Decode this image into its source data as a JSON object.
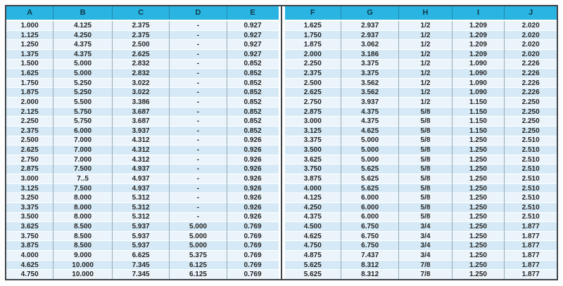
{
  "table": {
    "headers_left": [
      "A",
      "B",
      "C",
      "D",
      "E"
    ],
    "headers_right": [
      "F",
      "G",
      "H",
      "I",
      "J"
    ],
    "rows": [
      [
        "1.000",
        "4.125",
        "2.375",
        "-",
        "0.927",
        "1.625",
        "2.937",
        "1/2",
        "1.209",
        "2.020"
      ],
      [
        "1.125",
        "4.250",
        "2.375",
        "-",
        "0.927",
        "1.750",
        "2.937",
        "1/2",
        "1.209",
        "2.020"
      ],
      [
        "1.250",
        "4.375",
        "2.500",
        "-",
        "0.927",
        "1.875",
        "3.062",
        "1/2",
        "1.209",
        "2.020"
      ],
      [
        "1.375",
        "4.375",
        "2.625",
        "-",
        "0.927",
        "2.000",
        "3.186",
        "1/2",
        "1.209",
        "2.020"
      ],
      [
        "1.500",
        "5.000",
        "2.832",
        "-",
        "0.852",
        "2.250",
        "3.375",
        "1/2",
        "1.090",
        "2.226"
      ],
      [
        "1.625",
        "5.000",
        "2.832",
        "-",
        "0.852",
        "2.375",
        "3.375",
        "1/2",
        "1.090",
        "2.226"
      ],
      [
        "1.750",
        "5.250",
        "3.022",
        "-",
        "0.852",
        "2.500",
        "3.562",
        "1/2",
        "1.090",
        "2.226"
      ],
      [
        "1.875",
        "5.250",
        "3.022",
        "-",
        "0.852",
        "2.625",
        "3.562",
        "1/2",
        "1.090",
        "2.226"
      ],
      [
        "2.000",
        "5.500",
        "3.386",
        "-",
        "0.852",
        "2.750",
        "3.937",
        "1/2",
        "1.150",
        "2.250"
      ],
      [
        "2.125",
        "5.750",
        "3.687",
        "-",
        "0.852",
        "2.875",
        "4.375",
        "5/8",
        "1.150",
        "2.250"
      ],
      [
        "2.250",
        "5.750",
        "3.687",
        "-",
        "0.852",
        "3.000",
        "4.375",
        "5/8",
        "1.150",
        "2.250"
      ],
      [
        "2.375",
        "6.000",
        "3.937",
        "-",
        "0.852",
        "3.125",
        "4.625",
        "5/8",
        "1.150",
        "2.250"
      ],
      [
        "2.500",
        "7.000",
        "4.312",
        "-",
        "0.926",
        "3.375",
        "5.000",
        "5/8",
        "1.250",
        "2.510"
      ],
      [
        "2.625",
        "7.000",
        "4.312",
        "-",
        "0.926",
        "3.500",
        "5.000",
        "5/8",
        "1.250",
        "2.510"
      ],
      [
        "2.750",
        "7.000",
        "4.312",
        "-",
        "0.926",
        "3.625",
        "5.000",
        "5/8",
        "1.250",
        "2.510"
      ],
      [
        "2.875",
        "7.500",
        "4.937",
        "-",
        "0.926",
        "3.750",
        "5.625",
        "5/8",
        "1.250",
        "2.510"
      ],
      [
        "3.000",
        "7..5",
        "4.937",
        "-",
        "0.926",
        "3.875",
        "5.625",
        "5/8",
        "1.250",
        "2.510"
      ],
      [
        "3.125",
        "7.500",
        "4.937",
        "-",
        "0.926",
        "4.000",
        "5.625",
        "5/8",
        "1.250",
        "2.510"
      ],
      [
        "3.250",
        "8.000",
        "5.312",
        "-",
        "0.926",
        "4.125",
        "6.000",
        "5/8",
        "1.250",
        "2.510"
      ],
      [
        "3.375",
        "8.000",
        "5.312",
        "-",
        "0.926",
        "4.250",
        "6.000",
        "5/8",
        "1.250",
        "2.510"
      ],
      [
        "3.500",
        "8.000",
        "5.312",
        "-",
        "0.926",
        "4.375",
        "6.000",
        "5/8",
        "1.250",
        "2.510"
      ],
      [
        "3.625",
        "8.500",
        "5.937",
        "5.000",
        "0.769",
        "4.500",
        "6.750",
        "3/4",
        "1.250",
        "1.877"
      ],
      [
        "3.750",
        "8.500",
        "5.937",
        "5.000",
        "0.769",
        "4.625",
        "6.750",
        "3/4",
        "1.250",
        "1.877"
      ],
      [
        "3.875",
        "8.500",
        "5.937",
        "5.000",
        "0.769",
        "4.750",
        "6.750",
        "3/4",
        "1.250",
        "1.877"
      ],
      [
        "4.000",
        "9.000",
        "6.625",
        "5.375",
        "0.769",
        "4.875",
        "7.437",
        "3/4",
        "1.250",
        "1.877"
      ],
      [
        "4.625",
        "10.000",
        "7.345",
        "6.125",
        "0.769",
        "5.625",
        "8.312",
        "7/8",
        "1.250",
        "1.877"
      ],
      [
        "4.750",
        "10.000",
        "7.345",
        "6.125",
        "0.769",
        "5.625",
        "8.312",
        "7/8",
        "1.250",
        "1.877"
      ]
    ],
    "colors": {
      "header_bg": "#29b4e2",
      "header_text": "#123949",
      "row_light": "#ebf4fb",
      "row_dark": "#d5eaf6",
      "body_text": "#242424",
      "frame_border": "#3f4449",
      "column_line": "#97abb6"
    }
  }
}
